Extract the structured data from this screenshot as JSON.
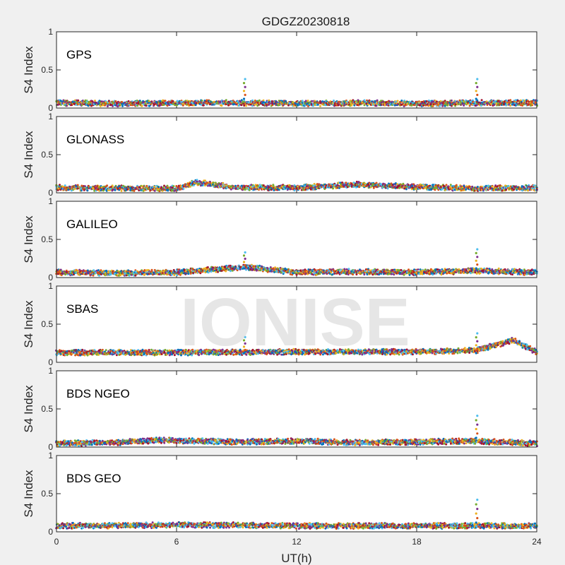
{
  "figure": {
    "title": "GDGZ20230818",
    "xlabel": "UT(h)",
    "watermark": "IONISE",
    "background": "#f0f0f0"
  },
  "chart_data": [
    {
      "type": "scatter",
      "label": "GPS",
      "ylabel": "S4 Index",
      "xlim": [
        0,
        24
      ],
      "ylim": [
        0,
        1
      ],
      "x_ticks": [
        0,
        6,
        12,
        18,
        24
      ],
      "y_ticks": [
        0,
        0.5,
        1
      ],
      "y_tick_labels": [
        "0",
        "0.5",
        "1"
      ],
      "grid": false,
      "series_colors": [
        "#0072BD",
        "#D95319",
        "#EDB120",
        "#7E2F8E",
        "#77AC30",
        "#4DBEEE",
        "#A2142F"
      ],
      "baseline": {
        "x": [
          0,
          3,
          6,
          9,
          12,
          15,
          18,
          21,
          24
        ],
        "y": [
          0.08,
          0.07,
          0.08,
          0.08,
          0.07,
          0.08,
          0.07,
          0.08,
          0.08
        ]
      },
      "spikes": [
        {
          "x": 9.4,
          "y": 0.38
        },
        {
          "x": 21.0,
          "y": 0.38
        }
      ]
    },
    {
      "type": "scatter",
      "label": "GLONASS",
      "ylabel": "S4 Index",
      "xlim": [
        0,
        24
      ],
      "ylim": [
        0,
        1
      ],
      "x_ticks": [
        0,
        6,
        12,
        18,
        24
      ],
      "y_ticks": [
        0,
        0.5,
        1
      ],
      "y_tick_labels": [
        "0",
        "0.5",
        "1"
      ],
      "grid": false,
      "series_colors": [
        "#0072BD",
        "#D95319",
        "#EDB120",
        "#7E2F8E",
        "#77AC30",
        "#4DBEEE",
        "#A2142F"
      ],
      "baseline": {
        "x": [
          0,
          3,
          6,
          7,
          9,
          12,
          15,
          18,
          21,
          24
        ],
        "y": [
          0.08,
          0.07,
          0.07,
          0.15,
          0.08,
          0.08,
          0.12,
          0.09,
          0.07,
          0.08
        ]
      },
      "spikes": []
    },
    {
      "type": "scatter",
      "label": "GALILEO",
      "ylabel": "S4 Index",
      "xlim": [
        0,
        24
      ],
      "ylim": [
        0,
        1
      ],
      "x_ticks": [
        0,
        6,
        12,
        18,
        24
      ],
      "y_ticks": [
        0,
        0.5,
        1
      ],
      "y_tick_labels": [
        "0",
        "0.5",
        "1"
      ],
      "grid": false,
      "series_colors": [
        "#0072BD",
        "#D95319",
        "#EDB120",
        "#7E2F8E",
        "#77AC30",
        "#4DBEEE",
        "#A2142F"
      ],
      "baseline": {
        "x": [
          0,
          3,
          6,
          9.5,
          12,
          15,
          18,
          21,
          24
        ],
        "y": [
          0.08,
          0.07,
          0.08,
          0.15,
          0.08,
          0.09,
          0.08,
          0.1,
          0.08
        ]
      },
      "spikes": [
        {
          "x": 9.4,
          "y": 0.33
        },
        {
          "x": 21.0,
          "y": 0.37
        }
      ]
    },
    {
      "type": "scatter",
      "label": "SBAS",
      "ylabel": "S4 Index",
      "xlim": [
        0,
        24
      ],
      "ylim": [
        0,
        1
      ],
      "x_ticks": [
        0,
        6,
        12,
        18,
        24
      ],
      "y_ticks": [
        0,
        0.5,
        1
      ],
      "y_tick_labels": [
        "0",
        "0.5",
        "1"
      ],
      "grid": false,
      "series_colors": [
        "#0072BD",
        "#D95319",
        "#EDB120",
        "#7E2F8E",
        "#77AC30",
        "#4DBEEE",
        "#A2142F"
      ],
      "baseline": {
        "x": [
          0,
          6,
          12,
          18,
          21,
          22.8,
          24
        ],
        "y": [
          0.14,
          0.14,
          0.15,
          0.15,
          0.17,
          0.3,
          0.15
        ]
      },
      "spikes": [
        {
          "x": 9.4,
          "y": 0.33
        },
        {
          "x": 21.0,
          "y": 0.38
        }
      ]
    },
    {
      "type": "scatter",
      "label": "BDS NGEO",
      "ylabel": "S4 Index",
      "xlim": [
        0,
        24
      ],
      "ylim": [
        0,
        1
      ],
      "x_ticks": [
        0,
        6,
        12,
        18,
        24
      ],
      "y_ticks": [
        0,
        0.5,
        1
      ],
      "y_tick_labels": [
        "0",
        "0.5",
        "1"
      ],
      "grid": false,
      "series_colors": [
        "#0072BD",
        "#D95319",
        "#EDB120",
        "#7E2F8E",
        "#77AC30",
        "#4DBEEE",
        "#A2142F"
      ],
      "baseline": {
        "x": [
          0,
          3,
          5,
          9,
          12,
          15,
          18,
          21,
          24
        ],
        "y": [
          0.06,
          0.07,
          0.1,
          0.08,
          0.09,
          0.07,
          0.08,
          0.09,
          0.06
        ]
      },
      "spikes": [
        {
          "x": 21.0,
          "y": 0.41
        }
      ]
    },
    {
      "type": "scatter",
      "label": "BDS GEO",
      "ylabel": "S4 Index",
      "xlim": [
        0,
        24
      ],
      "ylim": [
        0,
        1
      ],
      "x_ticks": [
        0,
        6,
        12,
        18,
        24
      ],
      "y_ticks": [
        0,
        0.5,
        1
      ],
      "y_tick_labels": [
        "0",
        "0.5",
        "1"
      ],
      "grid": false,
      "series_colors": [
        "#0072BD",
        "#D95319",
        "#EDB120",
        "#7E2F8E",
        "#77AC30",
        "#4DBEEE",
        "#A2142F"
      ],
      "baseline": {
        "x": [
          0,
          6,
          9,
          12,
          18,
          24
        ],
        "y": [
          0.09,
          0.1,
          0.1,
          0.09,
          0.09,
          0.09
        ]
      },
      "spikes": [
        {
          "x": 21.0,
          "y": 0.42
        }
      ]
    }
  ]
}
